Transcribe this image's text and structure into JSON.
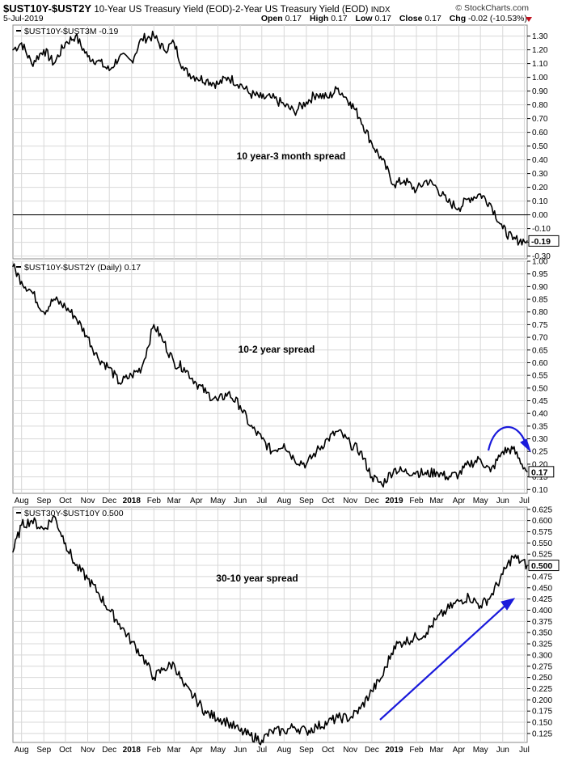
{
  "header": {
    "symbol": "$UST10Y-$UST2Y",
    "description": "10-Year US Treasury Yield (EOD)-2-Year US Treasury Yield (EOD)",
    "exchange": "INDX",
    "date": "5-Jul-2019",
    "brand": "© StockCharts.com",
    "open_label": "Open",
    "open_value": "0.17",
    "high_label": "High",
    "high_value": "0.17",
    "low_label": "Low",
    "low_value": "0.17",
    "close_label": "Close",
    "close_value": "0.17",
    "chg_label": "Chg",
    "chg_value": "-0.02 (-10.53%)"
  },
  "x_axis_labels": [
    "Aug",
    "Sep",
    "Oct",
    "Nov",
    "Dec",
    "2018",
    "Feb",
    "Mar",
    "Apr",
    "May",
    "Jun",
    "Jul",
    "Aug",
    "Sep",
    "Oct",
    "Nov",
    "Dec",
    "2019",
    "Feb",
    "Mar",
    "Apr",
    "May",
    "Jun",
    "Jul"
  ],
  "colors": {
    "line": "#000000",
    "annotation": "#1a1adb",
    "grid": "#d8d8d8",
    "zero_line": "#000000"
  },
  "chart_data": [
    {
      "type": "line",
      "legend": "$UST10Y-$UST3M -0.19",
      "annotation": "10 year-3 month spread",
      "last_value_label": "-0.19",
      "ylim": [
        -0.32,
        1.38
      ],
      "yticks": [
        "1.30",
        "1.20",
        "1.10",
        "1.00",
        "0.90",
        "0.80",
        "0.70",
        "0.60",
        "0.50",
        "0.40",
        "0.30",
        "0.20",
        "0.10",
        "0.00",
        "-0.10",
        "-0.20",
        "-0.30"
      ],
      "reference_line": 0.0,
      "x": [
        "2017-07-20",
        "2017-08-01",
        "2017-08-15",
        "2017-09-01",
        "2017-09-15",
        "2017-10-01",
        "2017-10-15",
        "2017-11-01",
        "2017-11-15",
        "2017-12-01",
        "2017-12-15",
        "2018-01-01",
        "2018-01-15",
        "2018-02-01",
        "2018-02-15",
        "2018-03-01",
        "2018-03-15",
        "2018-04-01",
        "2018-04-15",
        "2018-05-01",
        "2018-05-15",
        "2018-06-01",
        "2018-06-15",
        "2018-07-01",
        "2018-07-15",
        "2018-08-01",
        "2018-08-15",
        "2018-09-01",
        "2018-09-15",
        "2018-10-01",
        "2018-10-15",
        "2018-11-01",
        "2018-11-15",
        "2018-12-01",
        "2018-12-15",
        "2019-01-01",
        "2019-01-15",
        "2019-02-01",
        "2019-02-15",
        "2019-03-01",
        "2019-03-15",
        "2019-04-01",
        "2019-04-15",
        "2019-05-01",
        "2019-05-15",
        "2019-06-01",
        "2019-06-15",
        "2019-07-05"
      ],
      "values": [
        1.2,
        1.25,
        1.1,
        1.2,
        1.1,
        1.25,
        1.3,
        1.15,
        1.12,
        1.05,
        1.15,
        1.12,
        1.28,
        1.3,
        1.2,
        1.25,
        1.05,
        1.0,
        0.98,
        0.95,
        1.0,
        0.95,
        0.88,
        0.85,
        0.85,
        0.8,
        0.75,
        0.82,
        0.88,
        0.85,
        0.92,
        0.82,
        0.7,
        0.52,
        0.4,
        0.22,
        0.25,
        0.18,
        0.25,
        0.2,
        0.1,
        0.05,
        0.12,
        0.15,
        0.08,
        -0.1,
        -0.18,
        -0.19
      ]
    },
    {
      "type": "line",
      "legend": "$UST10Y-$UST2Y (Daily) 0.17",
      "annotation": "10-2 year spread",
      "last_value_label": "0.17",
      "ylim": [
        0.085,
        1.0
      ],
      "yticks": [
        "1.00",
        "0.95",
        "0.90",
        "0.85",
        "0.80",
        "0.75",
        "0.70",
        "0.65",
        "0.60",
        "0.55",
        "0.50",
        "0.45",
        "0.40",
        "0.35",
        "0.30",
        "0.25",
        "0.20",
        "0.15",
        "0.10"
      ],
      "x": [
        "2017-07-20",
        "2017-08-01",
        "2017-08-15",
        "2017-09-01",
        "2017-09-15",
        "2017-10-01",
        "2017-10-15",
        "2017-11-01",
        "2017-11-15",
        "2017-12-01",
        "2017-12-15",
        "2018-01-01",
        "2018-01-15",
        "2018-02-01",
        "2018-02-15",
        "2018-03-01",
        "2018-03-15",
        "2018-04-01",
        "2018-04-15",
        "2018-05-01",
        "2018-05-15",
        "2018-06-01",
        "2018-06-15",
        "2018-07-01",
        "2018-07-15",
        "2018-08-01",
        "2018-08-15",
        "2018-09-01",
        "2018-09-15",
        "2018-10-01",
        "2018-10-15",
        "2018-11-01",
        "2018-11-15",
        "2018-12-01",
        "2018-12-15",
        "2019-01-01",
        "2019-01-15",
        "2019-02-01",
        "2019-02-15",
        "2019-03-01",
        "2019-03-15",
        "2019-04-01",
        "2019-04-15",
        "2019-05-01",
        "2019-05-15",
        "2019-06-01",
        "2019-06-15",
        "2019-07-05"
      ],
      "values": [
        0.98,
        0.92,
        0.88,
        0.8,
        0.85,
        0.82,
        0.78,
        0.7,
        0.62,
        0.58,
        0.52,
        0.55,
        0.58,
        0.75,
        0.68,
        0.6,
        0.58,
        0.52,
        0.48,
        0.45,
        0.48,
        0.43,
        0.35,
        0.3,
        0.25,
        0.28,
        0.22,
        0.2,
        0.25,
        0.3,
        0.33,
        0.28,
        0.25,
        0.15,
        0.12,
        0.18,
        0.17,
        0.17,
        0.16,
        0.17,
        0.15,
        0.16,
        0.2,
        0.22,
        0.17,
        0.25,
        0.26,
        0.17
      ]
    },
    {
      "type": "line",
      "legend": "$UST30Y-$UST10Y 0.500",
      "annotation": "30-10 year spread",
      "last_value_label": "0.500",
      "ylim": [
        0.105,
        0.63
      ],
      "yticks": [
        "0.625",
        "0.600",
        "0.575",
        "0.550",
        "0.525",
        "0.500",
        "0.475",
        "0.450",
        "0.425",
        "0.400",
        "0.375",
        "0.350",
        "0.325",
        "0.300",
        "0.275",
        "0.250",
        "0.225",
        "0.200",
        "0.175",
        "0.150",
        "0.125"
      ],
      "x": [
        "2017-07-20",
        "2017-08-01",
        "2017-08-15",
        "2017-09-01",
        "2017-09-15",
        "2017-10-01",
        "2017-10-15",
        "2017-11-01",
        "2017-11-15",
        "2017-12-01",
        "2017-12-15",
        "2018-01-01",
        "2018-01-15",
        "2018-02-01",
        "2018-02-15",
        "2018-03-01",
        "2018-03-15",
        "2018-04-01",
        "2018-04-15",
        "2018-05-01",
        "2018-05-15",
        "2018-06-01",
        "2018-06-15",
        "2018-07-01",
        "2018-07-15",
        "2018-08-01",
        "2018-08-15",
        "2018-09-01",
        "2018-09-15",
        "2018-10-01",
        "2018-10-15",
        "2018-11-01",
        "2018-11-15",
        "2018-12-01",
        "2018-12-15",
        "2019-01-01",
        "2019-01-15",
        "2019-02-01",
        "2019-02-15",
        "2019-03-01",
        "2019-03-15",
        "2019-04-01",
        "2019-04-15",
        "2019-05-01",
        "2019-05-15",
        "2019-06-01",
        "2019-06-15",
        "2019-07-05"
      ],
      "values": [
        0.53,
        0.59,
        0.6,
        0.58,
        0.61,
        0.55,
        0.5,
        0.47,
        0.44,
        0.4,
        0.37,
        0.33,
        0.3,
        0.25,
        0.27,
        0.28,
        0.23,
        0.2,
        0.17,
        0.16,
        0.15,
        0.13,
        0.12,
        0.11,
        0.13,
        0.13,
        0.14,
        0.13,
        0.14,
        0.15,
        0.16,
        0.16,
        0.18,
        0.22,
        0.25,
        0.32,
        0.33,
        0.34,
        0.35,
        0.38,
        0.4,
        0.42,
        0.43,
        0.41,
        0.43,
        0.48,
        0.52,
        0.5
      ]
    }
  ]
}
